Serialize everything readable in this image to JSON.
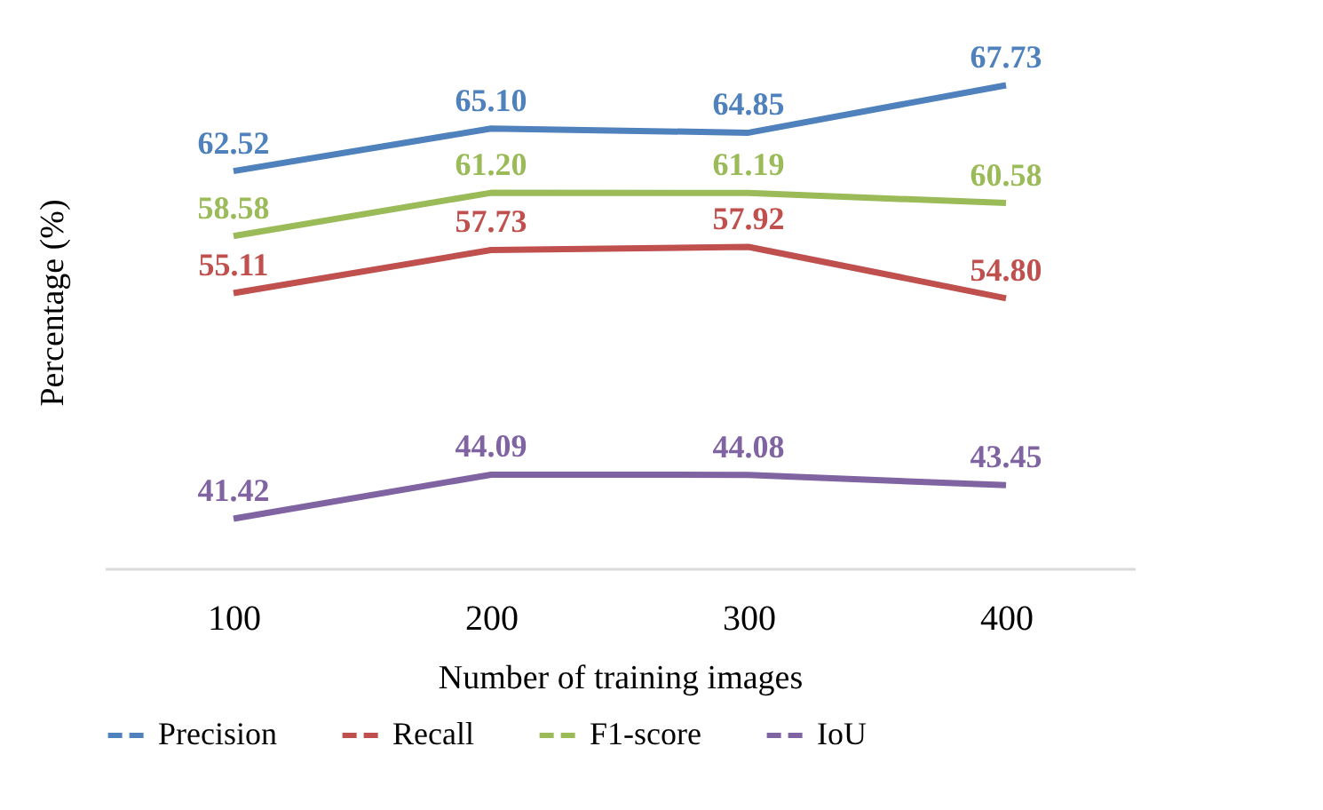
{
  "chart_data": {
    "type": "line",
    "xlabel": "Number of training images",
    "ylabel": "Percentage (%)",
    "categories": [
      "100",
      "200",
      "300",
      "400"
    ],
    "series": [
      {
        "name": "Precision",
        "color": "#4f81bd",
        "values": [
          62.52,
          65.1,
          64.85,
          67.73
        ],
        "value_labels": [
          "62.52",
          "65.10",
          "64.85",
          "67.73"
        ]
      },
      {
        "name": "Recall",
        "color": "#c0504d",
        "values": [
          55.11,
          57.73,
          57.92,
          54.8
        ],
        "value_labels": [
          "55.11",
          "57.73",
          "57.92",
          "54.80"
        ]
      },
      {
        "name": "F1-score",
        "color": "#9bbb59",
        "values": [
          58.58,
          61.2,
          61.19,
          60.58
        ],
        "value_labels": [
          "58.58",
          "61.20",
          "61.19",
          "60.58"
        ]
      },
      {
        "name": "IoU",
        "color": "#8064a2",
        "values": [
          41.42,
          44.09,
          44.08,
          43.45
        ],
        "value_labels": [
          "41.42",
          "44.09",
          "44.08",
          "43.45"
        ]
      }
    ],
    "tick_labels": "x",
    "grid": false,
    "legend": "bottom",
    "marker": "none",
    "line_style": "solid"
  }
}
